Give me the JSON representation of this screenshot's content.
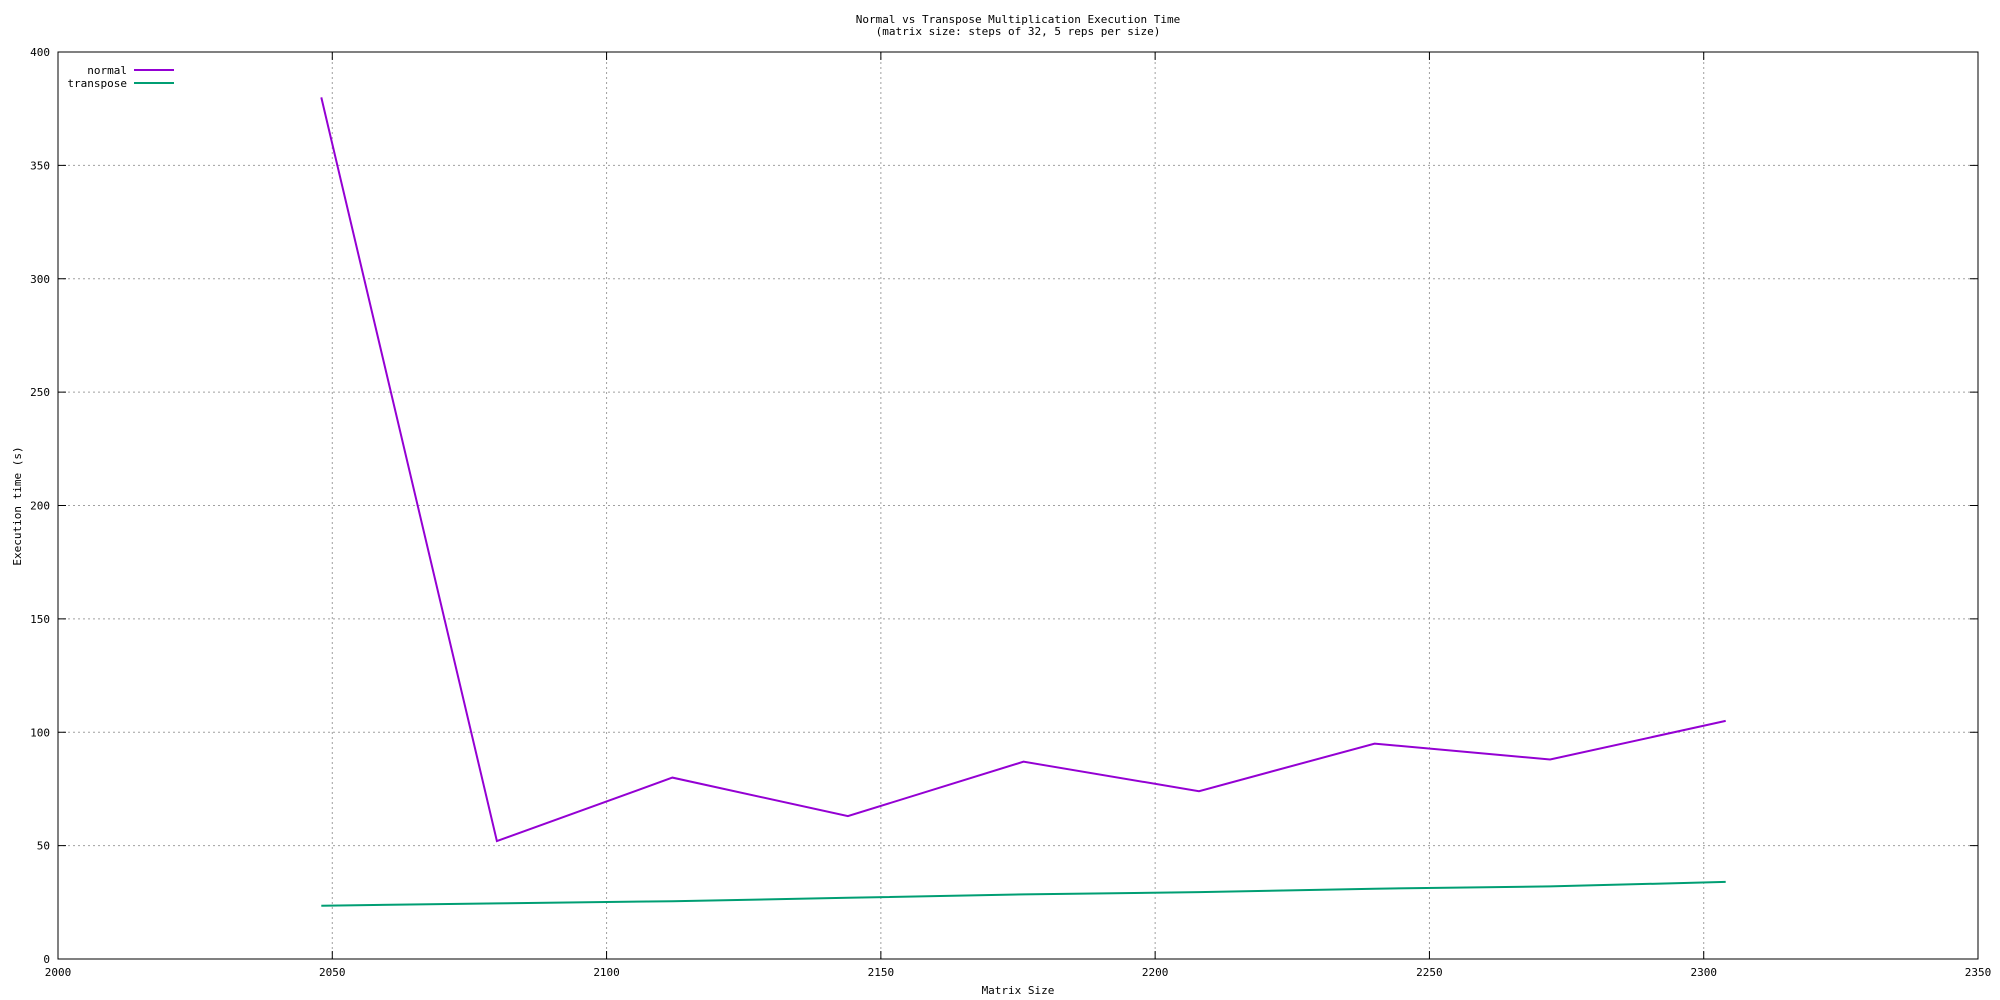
{
  "chart_data": {
    "type": "line",
    "title": "Normal vs Transpose Multiplication Execution Time",
    "subtitle": "(matrix size: steps of 32, 5 reps per size)",
    "xlabel": "Matrix Size",
    "ylabel": "Execution time (s)",
    "xlim": [
      2000,
      2350
    ],
    "ylim": [
      0,
      400
    ],
    "xticks": [
      2000,
      2050,
      2100,
      2150,
      2200,
      2250,
      2300,
      2350
    ],
    "yticks": [
      0,
      50,
      100,
      150,
      200,
      250,
      300,
      350,
      400
    ],
    "grid": true,
    "legend_position": "top-left",
    "x": [
      2048,
      2080,
      2112,
      2144,
      2176,
      2208,
      2240,
      2272,
      2304
    ],
    "series": [
      {
        "name": "normal",
        "color": "#9400d3",
        "values": [
          380,
          52,
          80,
          63,
          87,
          74,
          95,
          88,
          105
        ]
      },
      {
        "name": "transpose",
        "color": "#009e73",
        "values": [
          23.5,
          24.5,
          25.5,
          27,
          28.5,
          29.5,
          31,
          32,
          34
        ]
      }
    ]
  }
}
